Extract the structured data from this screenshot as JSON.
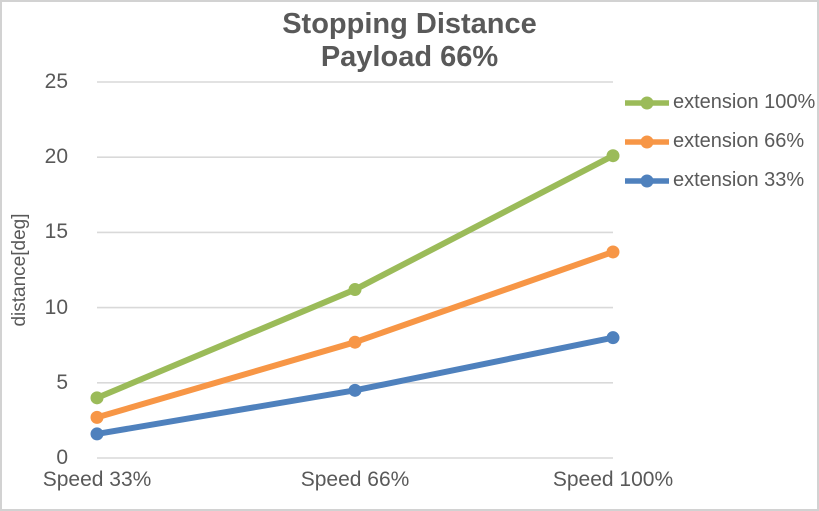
{
  "title": {
    "line1": "Stopping Distance",
    "line2": "Payload 66%"
  },
  "colors": {
    "text": "#595959",
    "grid": "#d9d9d9",
    "border": "#d2d2d2",
    "background": "#ffffff",
    "series_green": "#9bbb59",
    "series_orange": "#f79646",
    "series_blue": "#4f81bd"
  },
  "chart_data": {
    "type": "line",
    "title": "Stopping Distance\nPayload 66%",
    "xlabel": "",
    "ylabel": "distance[deg]",
    "categories": [
      "Speed 33%",
      "Speed 66%",
      "Speed 100%"
    ],
    "series": [
      {
        "name": "extension 100%",
        "color": "#9bbb59",
        "values": [
          4.0,
          11.2,
          20.1
        ]
      },
      {
        "name": "extension 66%",
        "color": "#f79646",
        "values": [
          2.7,
          7.7,
          13.7
        ]
      },
      {
        "name": "extension 33%",
        "color": "#4f81bd",
        "values": [
          1.6,
          4.5,
          8.0
        ]
      }
    ],
    "ylim": [
      0,
      25
    ],
    "yticks": [
      0,
      5,
      10,
      15,
      20,
      25
    ],
    "grid": true,
    "legend_position": "right",
    "marker": "circle"
  }
}
